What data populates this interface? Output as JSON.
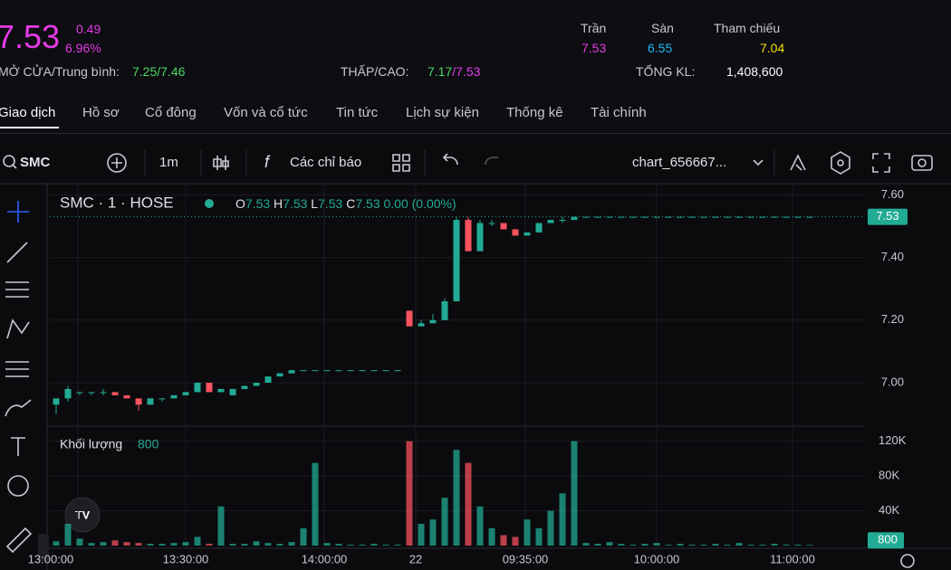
{
  "header": {
    "price": "7.53",
    "change": "0.49",
    "change_pct": "6.96%",
    "open_avg_label": "MỞ CỬA/Trung bình:",
    "open_avg": "7.25/7.46",
    "low_high_label": "THẤP/CAO:",
    "low": "7.17",
    "sep": "/",
    "high": "7.53",
    "ceiling_label": "Trần",
    "ceiling": "7.53",
    "floor_label": "Sàn",
    "floor": "6.55",
    "ref_label": "Tham chiếu",
    "ref": "7.04",
    "total_vol_label": "TỔNG KL:",
    "total_vol": "1,408,600"
  },
  "tabs": [
    "Giao dịch",
    "Hồ sơ",
    "Cổ đông",
    "Vốn và cổ tức",
    "Tin tức",
    "Lịch sự kiện",
    "Thống kê",
    "Tài chính"
  ],
  "toolbar": {
    "symbol": "SMC",
    "interval": "1m",
    "indicators": "Các chỉ báo",
    "chart_name": "chart_656667..."
  },
  "chart": {
    "type": "candlestick",
    "title": "SMC · 1 · HOSE",
    "legend": {
      "o": "O",
      "open": 7.53,
      "h": "H",
      "high": 7.53,
      "l": "L",
      "low": 7.53,
      "c": "C",
      "close": 7.53,
      "change": "0.00 (0.00%)",
      "volume_title": "Khối lượng",
      "volume": 800
    },
    "last_price": {
      "value": 7.53,
      "label": "7.53"
    },
    "ylim": [
      6.87,
      7.63
    ],
    "yticks": [
      {
        "value": 7.6,
        "label": "7.60"
      },
      {
        "value": 7.4,
        "label": "7.40"
      },
      {
        "value": 7.2,
        "label": "7.20"
      },
      {
        "value": 7.0,
        "label": "7.00"
      }
    ],
    "vlim": [
      0,
      130000
    ],
    "vticks": [
      {
        "value": 120000,
        "label": "120K"
      },
      {
        "value": 80000,
        "label": "80K"
      },
      {
        "value": 40000,
        "label": "40K"
      }
    ],
    "time_labels": [
      "13:00:00",
      "13:30:00",
      "14:00:00",
      "22",
      "09:35:00",
      "10:00:00",
      "11:00:00"
    ],
    "up_color": "#22ab94",
    "down_color": "#f7525f",
    "candles": [
      [
        6.93,
        6.95,
        6.9,
        6.95
      ],
      [
        6.95,
        6.99,
        6.94,
        6.98
      ],
      [
        6.97,
        6.97,
        6.96,
        6.97
      ],
      [
        6.97,
        6.97,
        6.96,
        6.97
      ],
      [
        6.97,
        6.98,
        6.96,
        6.97
      ],
      [
        6.97,
        6.97,
        6.96,
        6.96
      ],
      [
        6.96,
        6.96,
        6.95,
        6.95
      ],
      [
        6.95,
        6.95,
        6.91,
        6.93
      ],
      [
        6.93,
        6.95,
        6.93,
        6.95
      ],
      [
        6.95,
        6.95,
        6.94,
        6.95
      ],
      [
        6.95,
        6.96,
        6.95,
        6.96
      ],
      [
        6.96,
        6.97,
        6.96,
        6.97
      ],
      [
        6.97,
        7.0,
        6.97,
        7.0
      ],
      [
        7.0,
        7.0,
        6.97,
        6.97
      ],
      [
        6.97,
        6.98,
        6.97,
        6.98
      ],
      [
        6.96,
        6.98,
        6.96,
        6.98
      ],
      [
        6.98,
        6.99,
        6.98,
        6.99
      ],
      [
        6.99,
        7.0,
        6.99,
        7.0
      ],
      [
        7.0,
        7.02,
        7.0,
        7.02
      ],
      [
        7.02,
        7.03,
        7.02,
        7.03
      ],
      [
        7.03,
        7.04,
        7.03,
        7.04
      ],
      [
        7.04,
        7.04,
        7.04,
        7.04
      ],
      [
        7.04,
        7.04,
        7.04,
        7.04
      ],
      [
        7.04,
        7.04,
        7.04,
        7.04
      ],
      [
        7.04,
        7.04,
        7.04,
        7.04
      ],
      [
        7.04,
        7.04,
        7.04,
        7.04
      ],
      [
        7.04,
        7.04,
        7.04,
        7.04
      ],
      [
        7.04,
        7.04,
        7.04,
        7.04
      ],
      [
        7.04,
        7.04,
        7.04,
        7.04
      ],
      [
        7.04,
        7.04,
        7.04,
        7.04
      ],
      [
        7.23,
        7.23,
        7.18,
        7.18
      ],
      [
        7.18,
        7.2,
        7.18,
        7.19
      ],
      [
        7.19,
        7.22,
        7.19,
        7.2
      ],
      [
        7.2,
        7.27,
        7.2,
        7.26
      ],
      [
        7.26,
        7.53,
        7.26,
        7.52
      ],
      [
        7.52,
        7.53,
        7.42,
        7.42
      ],
      [
        7.42,
        7.52,
        7.42,
        7.51
      ],
      [
        7.51,
        7.52,
        7.5,
        7.51
      ],
      [
        7.51,
        7.51,
        7.49,
        7.49
      ],
      [
        7.49,
        7.49,
        7.47,
        7.47
      ],
      [
        7.47,
        7.48,
        7.47,
        7.48
      ],
      [
        7.48,
        7.51,
        7.48,
        7.51
      ],
      [
        7.51,
        7.52,
        7.51,
        7.52
      ],
      [
        7.52,
        7.53,
        7.51,
        7.52
      ],
      [
        7.52,
        7.53,
        7.52,
        7.53
      ],
      [
        7.53,
        7.53,
        7.53,
        7.53
      ],
      [
        7.53,
        7.53,
        7.53,
        7.53
      ],
      [
        7.53,
        7.53,
        7.53,
        7.53
      ],
      [
        7.53,
        7.53,
        7.53,
        7.53
      ],
      [
        7.53,
        7.53,
        7.53,
        7.53
      ],
      [
        7.53,
        7.53,
        7.53,
        7.53
      ],
      [
        7.53,
        7.53,
        7.53,
        7.53
      ],
      [
        7.53,
        7.53,
        7.53,
        7.53
      ],
      [
        7.53,
        7.53,
        7.53,
        7.53
      ],
      [
        7.53,
        7.53,
        7.53,
        7.53
      ],
      [
        7.53,
        7.53,
        7.53,
        7.53
      ],
      [
        7.53,
        7.53,
        7.53,
        7.53
      ],
      [
        7.53,
        7.53,
        7.53,
        7.53
      ],
      [
        7.53,
        7.53,
        7.53,
        7.53
      ],
      [
        7.53,
        7.53,
        7.53,
        7.53
      ],
      [
        7.53,
        7.53,
        7.53,
        7.53
      ],
      [
        7.53,
        7.53,
        7.53,
        7.53
      ],
      [
        7.53,
        7.53,
        7.53,
        7.53
      ],
      [
        7.53,
        7.53,
        7.53,
        7.53
      ],
      [
        7.53,
        7.53,
        7.53,
        7.53
      ]
    ],
    "volumes": [
      5000,
      25000,
      8000,
      3000,
      4000,
      6000,
      4000,
      3000,
      2000,
      2000,
      3000,
      4000,
      10000,
      2000,
      45000,
      2000,
      2000,
      5000,
      3000,
      2000,
      4000,
      20000,
      95000,
      3000,
      2000,
      1000,
      1000,
      2000,
      1000,
      1000,
      120000,
      25000,
      30000,
      55000,
      110000,
      95000,
      45000,
      20000,
      12000,
      10000,
      30000,
      20000,
      40000,
      60000,
      120000,
      3000,
      2000,
      4000,
      2000,
      1000,
      2000,
      3000,
      1000,
      2000,
      1000,
      1000,
      2000,
      1000,
      3000,
      1000,
      1000,
      2000,
      1000,
      1000,
      800
    ]
  }
}
